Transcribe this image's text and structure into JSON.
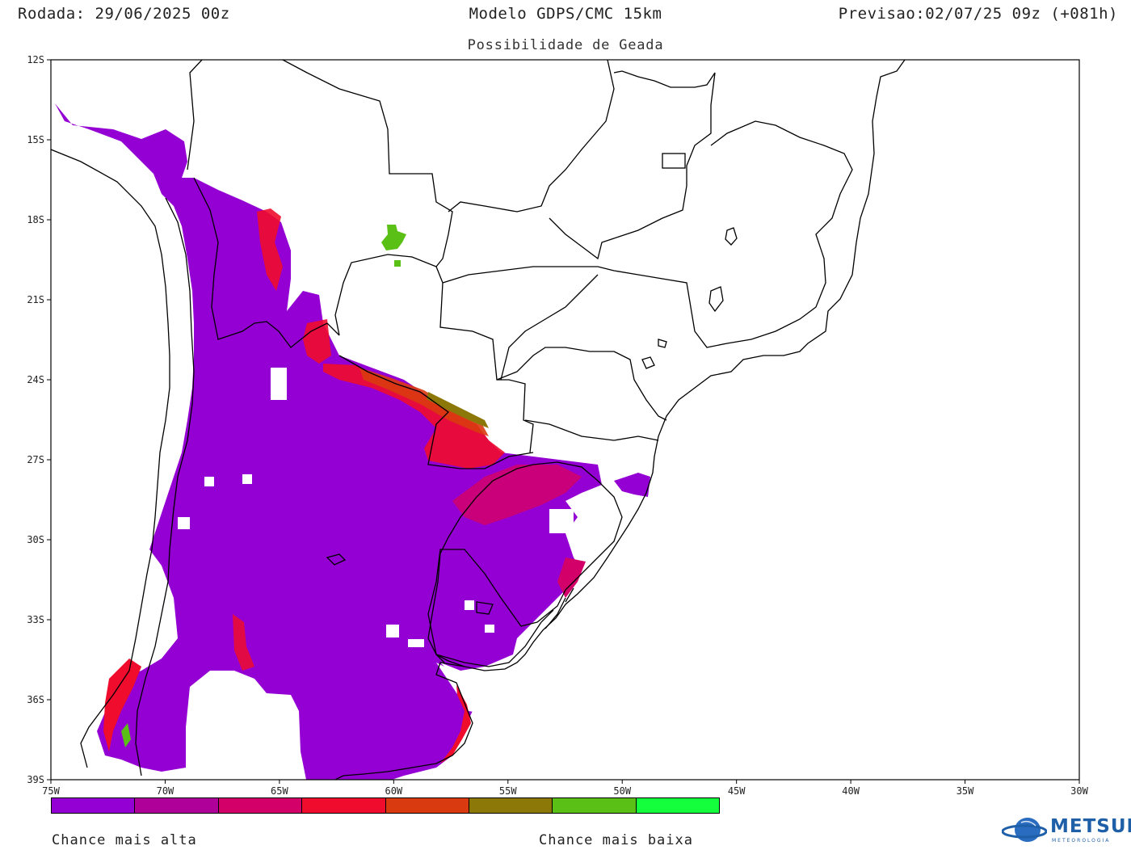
{
  "header": {
    "run": "Rodada: 29/06/2025 00z",
    "model": "Modelo GDPS/CMC 15km",
    "forecast": "Previsao:02/07/25 09z (+081h)",
    "subtitle": "Possibilidade de Geada"
  },
  "map": {
    "lon_ticks": [
      "75W",
      "70W",
      "65W",
      "60W",
      "55W",
      "50W",
      "45W",
      "40W",
      "35W",
      "30W"
    ],
    "lat_ticks": [
      "12S",
      "15S",
      "18S",
      "21S",
      "24S",
      "27S",
      "30S",
      "33S",
      "36S",
      "39S"
    ],
    "lon_range": [
      -75,
      -30
    ],
    "lat_range": [
      -39,
      -12
    ],
    "frost_colors": [
      "#9400d3",
      "#b0009a",
      "#d4006a",
      "#f00c2c",
      "#d93a10",
      "#8c7808",
      "#5bc016",
      "#14ff3c"
    ]
  },
  "legend": {
    "colors": [
      "#9400d3",
      "#b0009a",
      "#d4006a",
      "#f00c2c",
      "#d93a10",
      "#8c7808",
      "#5bc016",
      "#14ff3c"
    ],
    "high_label": "Chance mais alta",
    "low_label": "Chance mais baixa"
  },
  "logo": {
    "text": "METSUL",
    "sub": "METEOROLOGIA",
    "color": "#1e5fa8"
  }
}
